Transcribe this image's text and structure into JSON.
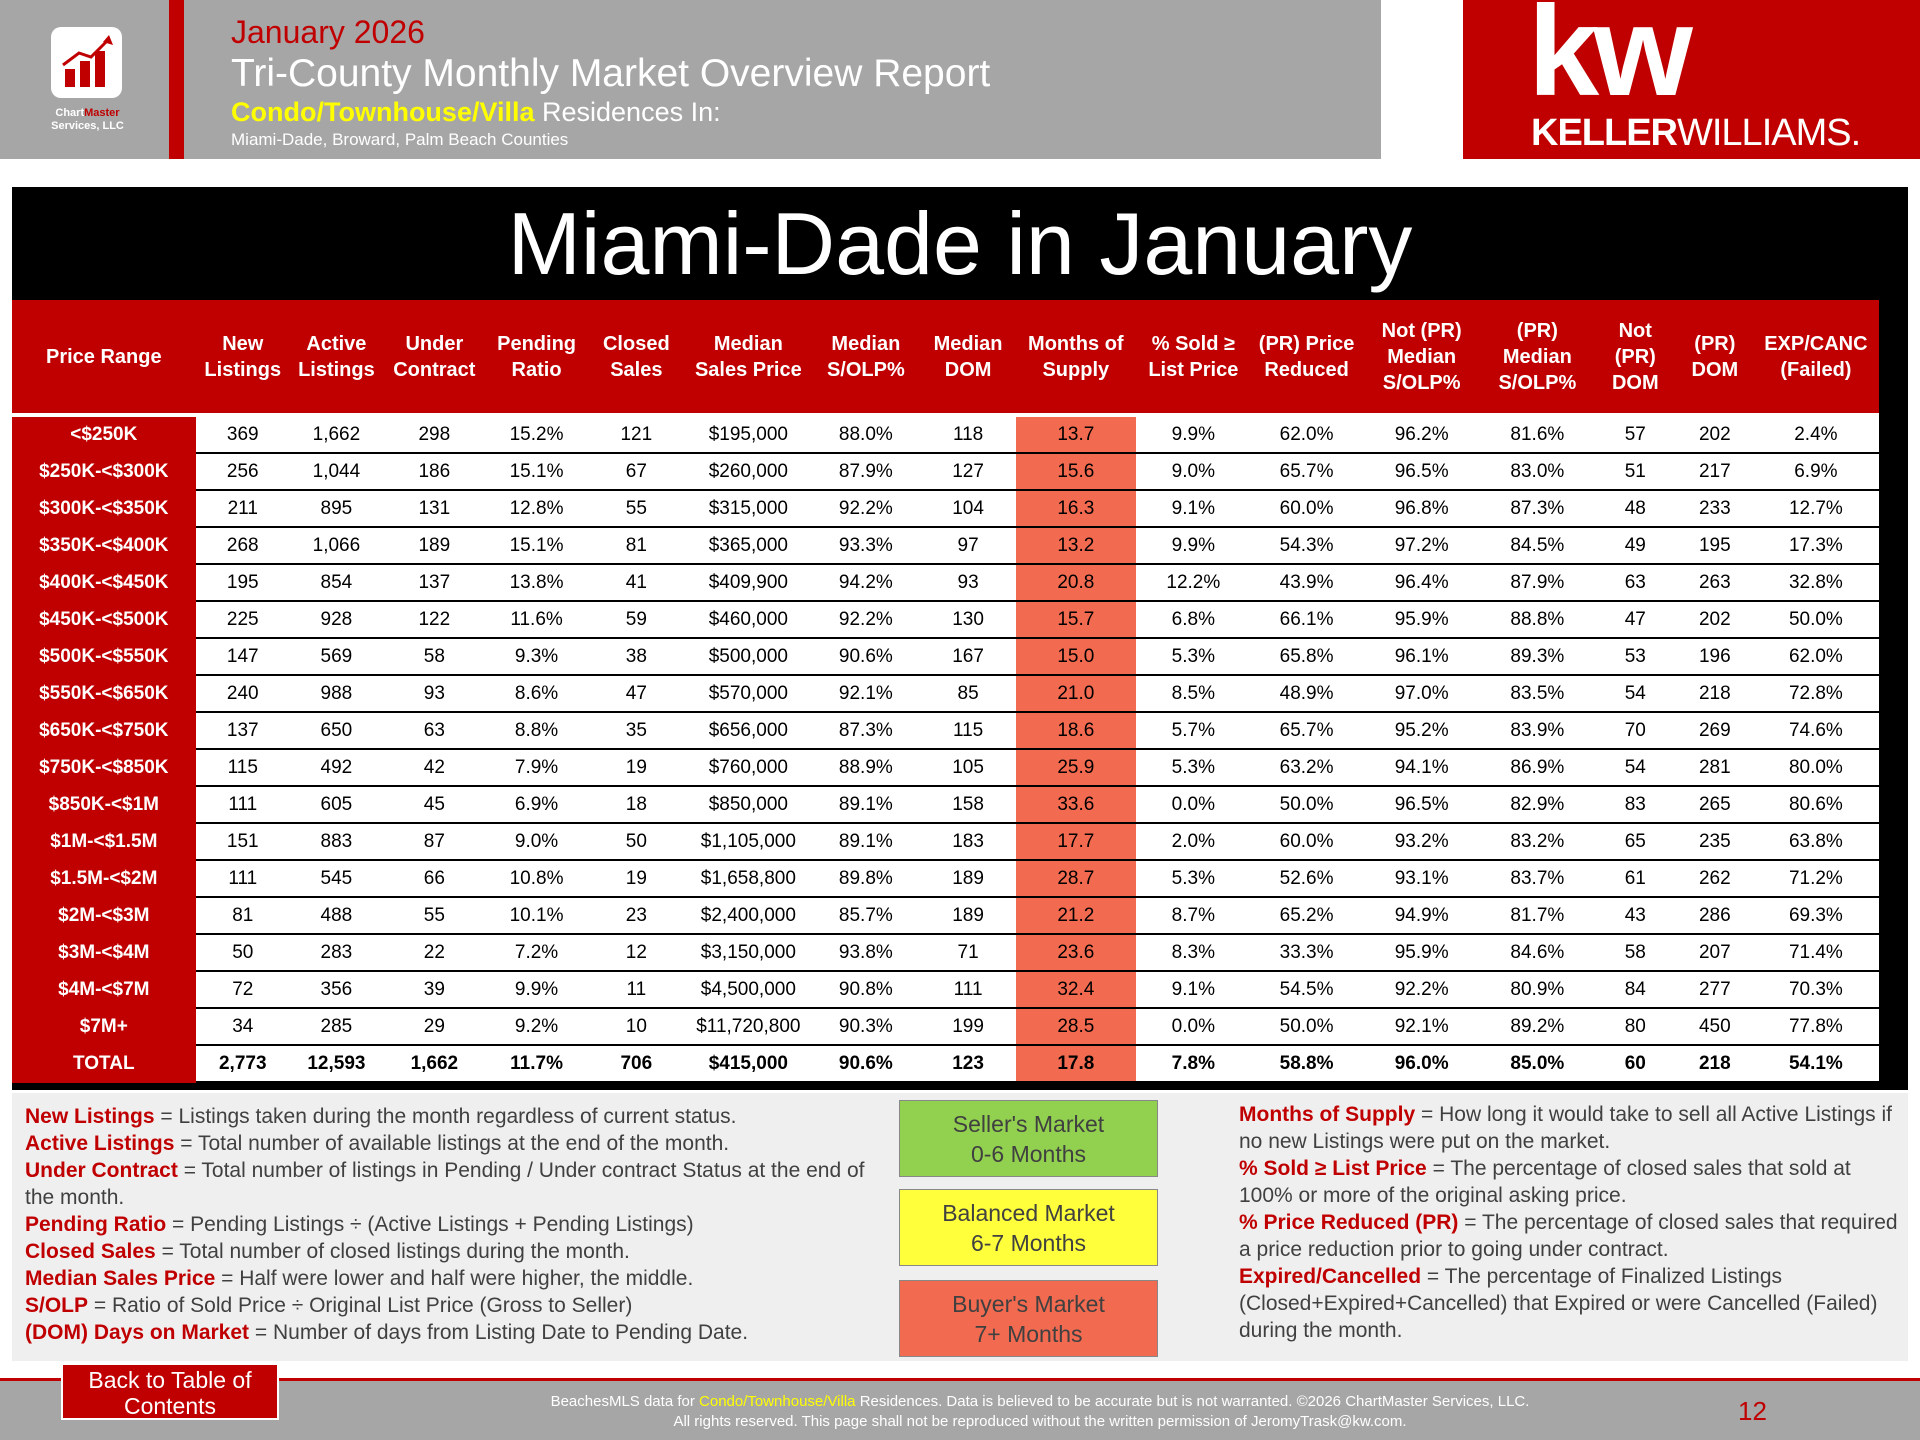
{
  "header": {
    "date": "January 2026",
    "title": "Tri-County Monthly Market Overview Report",
    "property_type": "Condo/Townhouse/Villa",
    "subtitle": "Residences In:",
    "counties": "Miami-Dade, Broward, Palm Beach Counties"
  },
  "logo": {
    "name_a": "Chart",
    "name_b": "Master",
    "company": "Services, LLC"
  },
  "brand": {
    "mark": "kw",
    "name_a": "KELLER",
    "name_b": "WILLIAMS."
  },
  "banner": "Miami-Dade in January",
  "table": {
    "columns": [
      [
        "Price Range"
      ],
      [
        "New",
        "Listings"
      ],
      [
        "Active",
        "Listings"
      ],
      [
        "Under",
        "Contract"
      ],
      [
        "Pending",
        "Ratio"
      ],
      [
        "Closed",
        "Sales"
      ],
      [
        "Median",
        "Sales Price"
      ],
      [
        "Median",
        "S/OLP%"
      ],
      [
        "Median",
        "DOM"
      ],
      [
        "Months of",
        "Supply"
      ],
      [
        "% Sold ≥",
        "List Price"
      ],
      [
        "(PR) Price",
        "Reduced"
      ],
      [
        "Not (PR)",
        "Median",
        "S/OLP%"
      ],
      [
        "(PR)",
        "Median",
        "S/OLP%"
      ],
      [
        "Not",
        "(PR)",
        "DOM"
      ],
      [
        "(PR)",
        "DOM"
      ],
      [
        "EXP/CANC",
        "(Failed)"
      ]
    ],
    "rows": [
      [
        "<$250K",
        "369",
        "1,662",
        "298",
        "15.2%",
        "121",
        "$195,000",
        "88.0%",
        "118",
        "13.7",
        "9.9%",
        "62.0%",
        "96.2%",
        "81.6%",
        "57",
        "202",
        "2.4%"
      ],
      [
        "$250K-<$300K",
        "256",
        "1,044",
        "186",
        "15.1%",
        "67",
        "$260,000",
        "87.9%",
        "127",
        "15.6",
        "9.0%",
        "65.7%",
        "96.5%",
        "83.0%",
        "51",
        "217",
        "6.9%"
      ],
      [
        "$300K-<$350K",
        "211",
        "895",
        "131",
        "12.8%",
        "55",
        "$315,000",
        "92.2%",
        "104",
        "16.3",
        "9.1%",
        "60.0%",
        "96.8%",
        "87.3%",
        "48",
        "233",
        "12.7%"
      ],
      [
        "$350K-<$400K",
        "268",
        "1,066",
        "189",
        "15.1%",
        "81",
        "$365,000",
        "93.3%",
        "97",
        "13.2",
        "9.9%",
        "54.3%",
        "97.2%",
        "84.5%",
        "49",
        "195",
        "17.3%"
      ],
      [
        "$400K-<$450K",
        "195",
        "854",
        "137",
        "13.8%",
        "41",
        "$409,900",
        "94.2%",
        "93",
        "20.8",
        "12.2%",
        "43.9%",
        "96.4%",
        "87.9%",
        "63",
        "263",
        "32.8%"
      ],
      [
        "$450K-<$500K",
        "225",
        "928",
        "122",
        "11.6%",
        "59",
        "$460,000",
        "92.2%",
        "130",
        "15.7",
        "6.8%",
        "66.1%",
        "95.9%",
        "88.8%",
        "47",
        "202",
        "50.0%"
      ],
      [
        "$500K-<$550K",
        "147",
        "569",
        "58",
        "9.3%",
        "38",
        "$500,000",
        "90.6%",
        "167",
        "15.0",
        "5.3%",
        "65.8%",
        "96.1%",
        "89.3%",
        "53",
        "196",
        "62.0%"
      ],
      [
        "$550K-<$650K",
        "240",
        "988",
        "93",
        "8.6%",
        "47",
        "$570,000",
        "92.1%",
        "85",
        "21.0",
        "8.5%",
        "48.9%",
        "97.0%",
        "83.5%",
        "54",
        "218",
        "72.8%"
      ],
      [
        "$650K-<$750K",
        "137",
        "650",
        "63",
        "8.8%",
        "35",
        "$656,000",
        "87.3%",
        "115",
        "18.6",
        "5.7%",
        "65.7%",
        "95.2%",
        "83.9%",
        "70",
        "269",
        "74.6%"
      ],
      [
        "$750K-<$850K",
        "115",
        "492",
        "42",
        "7.9%",
        "19",
        "$760,000",
        "88.9%",
        "105",
        "25.9",
        "5.3%",
        "63.2%",
        "94.1%",
        "86.9%",
        "54",
        "281",
        "80.0%"
      ],
      [
        "$850K-<$1M",
        "111",
        "605",
        "45",
        "6.9%",
        "18",
        "$850,000",
        "89.1%",
        "158",
        "33.6",
        "0.0%",
        "50.0%",
        "96.5%",
        "82.9%",
        "83",
        "265",
        "80.6%"
      ],
      [
        "$1M-<$1.5M",
        "151",
        "883",
        "87",
        "9.0%",
        "50",
        "$1,105,000",
        "89.1%",
        "183",
        "17.7",
        "2.0%",
        "60.0%",
        "93.2%",
        "83.2%",
        "65",
        "235",
        "63.8%"
      ],
      [
        "$1.5M-<$2M",
        "111",
        "545",
        "66",
        "10.8%",
        "19",
        "$1,658,800",
        "89.8%",
        "189",
        "28.7",
        "5.3%",
        "52.6%",
        "93.1%",
        "83.7%",
        "61",
        "262",
        "71.2%"
      ],
      [
        "$2M-<$3M",
        "81",
        "488",
        "55",
        "10.1%",
        "23",
        "$2,400,000",
        "85.7%",
        "189",
        "21.2",
        "8.7%",
        "65.2%",
        "94.9%",
        "81.7%",
        "43",
        "286",
        "69.3%"
      ],
      [
        "$3M-<$4M",
        "50",
        "283",
        "22",
        "7.2%",
        "12",
        "$3,150,000",
        "93.8%",
        "71",
        "23.6",
        "8.3%",
        "33.3%",
        "95.9%",
        "84.6%",
        "58",
        "207",
        "71.4%"
      ],
      [
        "$4M-<$7M",
        "72",
        "356",
        "39",
        "9.9%",
        "11",
        "$4,500,000",
        "90.8%",
        "111",
        "32.4",
        "9.1%",
        "54.5%",
        "92.2%",
        "80.9%",
        "84",
        "277",
        "70.3%"
      ],
      [
        "$7M+",
        "34",
        "285",
        "29",
        "9.2%",
        "10",
        "$11,720,800",
        "90.3%",
        "199",
        "28.5",
        "0.0%",
        "50.0%",
        "92.1%",
        "89.2%",
        "80",
        "450",
        "77.8%"
      ]
    ],
    "total": [
      "TOTAL",
      "2,773",
      "12,593",
      "1,662",
      "11.7%",
      "706",
      "$415,000",
      "90.6%",
      "123",
      "17.8",
      "7.8%",
      "58.8%",
      "96.0%",
      "85.0%",
      "60",
      "218",
      "54.1%"
    ],
    "highlight_column": 9,
    "highlight_color": "#f26a50"
  },
  "definitions_left": [
    {
      "term": "New Listings",
      "text": "= Listings taken during the month regardless of current status."
    },
    {
      "term": "Active Listings",
      "text": "= Total number of available listings at the end of the month."
    },
    {
      "term": "Under Contract",
      "text": "= Total number of listings in Pending / Under contract Status at the end of the month."
    },
    {
      "term": "Pending Ratio",
      "text": "= Pending Listings ÷ (Active Listings + Pending Listings)"
    },
    {
      "term": "Closed Sales",
      "text": "= Total number of closed listings during the month."
    },
    {
      "term": "Median Sales Price",
      "text": "= Half were lower and half were higher, the middle."
    },
    {
      "term": "S/OLP",
      "text": "= Ratio of Sold Price ÷ Original List Price (Gross to Seller)"
    },
    {
      "term": "(DOM) Days on Market",
      "text": "= Number of days from Listing Date to Pending Date."
    }
  ],
  "market_key": [
    {
      "label": "Seller's Market",
      "range": "0-6 Months",
      "color": "#92d050"
    },
    {
      "label": "Balanced Market",
      "range": "6-7 Months",
      "color": "#ffff3c"
    },
    {
      "label": "Buyer's Market",
      "range": "7+ Months",
      "color": "#f26a50"
    }
  ],
  "definitions_right": [
    {
      "term": "Months of Supply",
      "text": "= How long it would take to sell all Active Listings if no new Listings were put on the market."
    },
    {
      "term": "% Sold ≥ List Price",
      "text": "= The percentage of closed sales that sold at 100% or more of the original asking price."
    },
    {
      "term": "% Price Reduced (PR)",
      "text": "= The percentage of closed sales that required a price reduction prior to going under contract."
    },
    {
      "term": "Expired/Cancelled",
      "text": "= The percentage of Finalized Listings (Closed+Expired+Cancelled) that Expired or were Cancelled (Failed) during the month."
    }
  ],
  "footer": {
    "button": "Back to Table of Contents",
    "source_a": "BeachesMLS data for",
    "source_highlight": "Condo/Townhouse/Villa",
    "source_b": "Residences.  Data is believed to be accurate but is not warranted.   ©2026  ChartMaster Services, LLC.",
    "rights": "All rights reserved. This page shall not be reproduced without the written permission of JeromyTrask@kw.com.",
    "page": "12"
  }
}
